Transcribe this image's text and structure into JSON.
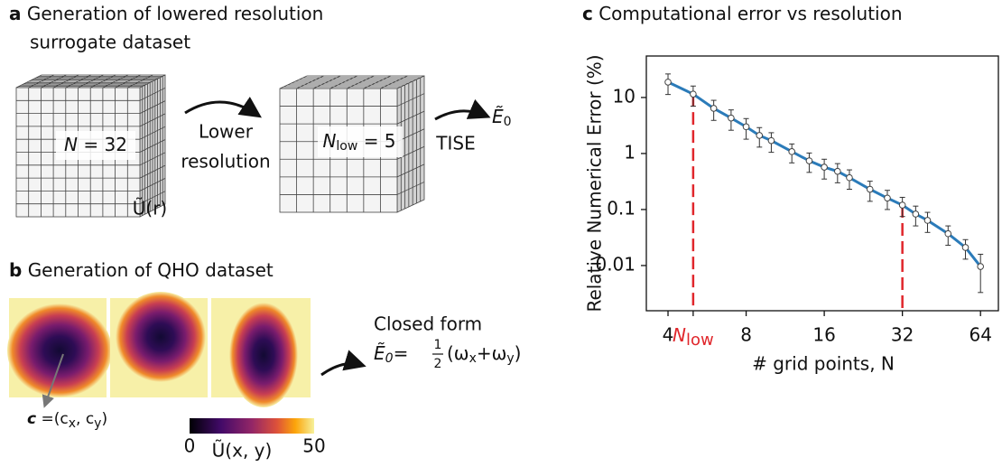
{
  "panel_a": {
    "label": "a",
    "title_lines": [
      "Generation of lowered resolution",
      "surrogate dataset"
    ],
    "cube_high": {
      "var": "N",
      "eq": "= 32"
    },
    "arrow1_lines": [
      "Lower",
      "resolution"
    ],
    "cube_low": {
      "var": "N",
      "sub": "low",
      "eq": "= 5"
    },
    "potential": "Ũ(r)",
    "arrow2": "TISE",
    "energy": {
      "sym": "Ẽ",
      "sub": "0"
    }
  },
  "panel_b": {
    "label": "b",
    "title": "Generation of QHO dataset",
    "center": {
      "sym": "c",
      "eq": " =(c",
      "sx": "x",
      "mid": ", c",
      "sy": "y",
      "close": ")"
    },
    "closed_form": "Closed form",
    "formula": {
      "lhs": "Ẽ",
      "lhs_sub": "0",
      "eq": "= ",
      "num": "1",
      "den": "2",
      "open": "(ω",
      "s1": "x",
      "plus": "+ω",
      "s2": "y",
      "close": ")"
    },
    "colorbar": {
      "lim": [
        0,
        50
      ],
      "ticks": [
        0,
        50
      ],
      "label": "Ũ(x, y)"
    }
  },
  "chart_data": {
    "type": "line",
    "panel_label": "c",
    "title": "Computational error vs resolution",
    "xlabel": "# grid points, N",
    "ylabel": "Relative Numerical Error (%)",
    "xscale": "log",
    "yscale": "log",
    "x": [
      4,
      5,
      6,
      7,
      8,
      9,
      10,
      12,
      14,
      16,
      18,
      20,
      24,
      28,
      32,
      36,
      40,
      48,
      56,
      64
    ],
    "values": [
      18.8,
      11.5,
      6.4,
      4.3,
      3.0,
      2.1,
      1.7,
      1.08,
      0.74,
      0.57,
      0.48,
      0.37,
      0.23,
      0.16,
      0.12,
      0.083,
      0.064,
      0.037,
      0.021,
      0.0096
    ],
    "errors": [
      7.5,
      4.5,
      2.5,
      1.7,
      1.2,
      0.8,
      0.65,
      0.4,
      0.28,
      0.22,
      0.18,
      0.14,
      0.09,
      0.06,
      0.045,
      0.032,
      0.025,
      0.014,
      0.008,
      0.0063
    ],
    "color": "#2b7bb9",
    "xlim": [
      3.3,
      75
    ],
    "ylim": [
      0.00156,
      55
    ],
    "xticks": [
      4,
      {
        "value": 5,
        "label": "N",
        "label_sub": "low"
      },
      8,
      16,
      32,
      64
    ],
    "yticks": [
      0.01,
      0.1,
      1,
      10
    ],
    "reference_lines": {
      "x": [
        5,
        32
      ],
      "color": "#e0262b"
    }
  }
}
